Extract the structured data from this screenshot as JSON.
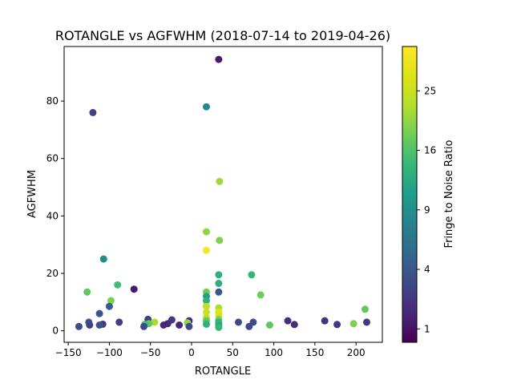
{
  "chart_data": {
    "type": "scatter",
    "title": "ROTANGLE vs AGFWHM (2018-07-14 to 2019-04-26)",
    "xlabel": "ROTANGLE",
    "ylabel": "AGFWHM",
    "xlim": [
      -155,
      232
    ],
    "ylim": [
      -4,
      99
    ],
    "xticks": [
      -150,
      -100,
      -50,
      0,
      50,
      100,
      150,
      200
    ],
    "yticks": [
      0,
      20,
      40,
      60,
      80
    ],
    "grid": false,
    "colorbar": {
      "label": "Fringe to Noise Ratio",
      "scale": "sqrt",
      "range": [
        0.6,
        33
      ],
      "ticks": [
        1,
        4,
        9,
        16,
        25
      ],
      "colormap": "viridis"
    },
    "points": [
      {
        "x": 33,
        "y": 94.5,
        "c": 1.2
      },
      {
        "x": 18,
        "y": 78,
        "c": 8.5
      },
      {
        "x": -120,
        "y": 76,
        "c": 2.8
      },
      {
        "x": 34,
        "y": 52,
        "c": 21
      },
      {
        "x": 18,
        "y": 34.5,
        "c": 20
      },
      {
        "x": 34,
        "y": 31.5,
        "c": 19
      },
      {
        "x": 18,
        "y": 28,
        "c": 32
      },
      {
        "x": -107,
        "y": 25,
        "c": 8.5
      },
      {
        "x": 33,
        "y": 19.5,
        "c": 13
      },
      {
        "x": 73,
        "y": 19.5,
        "c": 14
      },
      {
        "x": 33,
        "y": 16.5,
        "c": 13
      },
      {
        "x": -90,
        "y": 16,
        "c": 15
      },
      {
        "x": -70,
        "y": 14.5,
        "c": 1.2
      },
      {
        "x": -127,
        "y": 13.5,
        "c": 17
      },
      {
        "x": 33,
        "y": 13.5,
        "c": 3.8
      },
      {
        "x": 18,
        "y": 13.5,
        "c": 18
      },
      {
        "x": 18,
        "y": 12,
        "c": 11
      },
      {
        "x": 84,
        "y": 12.5,
        "c": 18
      },
      {
        "x": 18,
        "y": 10.5,
        "c": 13
      },
      {
        "x": -98,
        "y": 10.5,
        "c": 19
      },
      {
        "x": -100,
        "y": 8.5,
        "c": 4.2
      },
      {
        "x": 18,
        "y": 8.5,
        "c": 24
      },
      {
        "x": 33,
        "y": 8.0,
        "c": 22
      },
      {
        "x": 33,
        "y": 6.5,
        "c": 28
      },
      {
        "x": 18,
        "y": 6.5,
        "c": 25
      },
      {
        "x": 33,
        "y": 5.5,
        "c": 27
      },
      {
        "x": -112,
        "y": 6,
        "c": 3.8
      },
      {
        "x": 211,
        "y": 7.5,
        "c": 17
      },
      {
        "x": 18,
        "y": 4.5,
        "c": 24
      },
      {
        "x": 33,
        "y": 4.0,
        "c": 19
      },
      {
        "x": -53,
        "y": 4,
        "c": 2.6
      },
      {
        "x": 18,
        "y": 3.5,
        "c": 17
      },
      {
        "x": -3,
        "y": 3.5,
        "c": 1.7
      },
      {
        "x": -24,
        "y": 3.8,
        "c": 2.3
      },
      {
        "x": 117,
        "y": 3.5,
        "c": 1.9
      },
      {
        "x": 162,
        "y": 3.5,
        "c": 2.0
      },
      {
        "x": 33,
        "y": 3.0,
        "c": 13
      },
      {
        "x": -125,
        "y": 3,
        "c": 3.8
      },
      {
        "x": -88,
        "y": 3,
        "c": 2.6
      },
      {
        "x": -45,
        "y": 3,
        "c": 22
      },
      {
        "x": 57,
        "y": 3,
        "c": 3.2
      },
      {
        "x": 75,
        "y": 3,
        "c": 3.2
      },
      {
        "x": 213,
        "y": 3,
        "c": 2.2
      },
      {
        "x": -5,
        "y": 2.8,
        "c": 20
      },
      {
        "x": -52,
        "y": 2.5,
        "c": 17
      },
      {
        "x": 33,
        "y": 2.5,
        "c": 14
      },
      {
        "x": 18,
        "y": 2.3,
        "c": 13
      },
      {
        "x": -108,
        "y": 2.3,
        "c": 2.3
      },
      {
        "x": -29,
        "y": 2.5,
        "c": 1.7
      },
      {
        "x": 125,
        "y": 2.2,
        "c": 1.8
      },
      {
        "x": 177,
        "y": 2.2,
        "c": 2.2
      },
      {
        "x": 197,
        "y": 2.5,
        "c": 19
      },
      {
        "x": 95,
        "y": 2,
        "c": 17
      },
      {
        "x": -124,
        "y": 2,
        "c": 2.8
      },
      {
        "x": -112,
        "y": 2,
        "c": 3.6
      },
      {
        "x": -57,
        "y": 2.2,
        "c": 15
      },
      {
        "x": -34,
        "y": 2,
        "c": 1.6
      },
      {
        "x": -15,
        "y": 2,
        "c": 1.5
      },
      {
        "x": 33,
        "y": 1.8,
        "c": 12
      },
      {
        "x": 33,
        "y": 1.2,
        "c": 14
      },
      {
        "x": -137,
        "y": 1.5,
        "c": 3.2
      },
      {
        "x": -58,
        "y": 1.5,
        "c": 3.0
      },
      {
        "x": -3,
        "y": 1.5,
        "c": 3.0
      },
      {
        "x": 70,
        "y": 1.5,
        "c": 3.0
      }
    ]
  }
}
